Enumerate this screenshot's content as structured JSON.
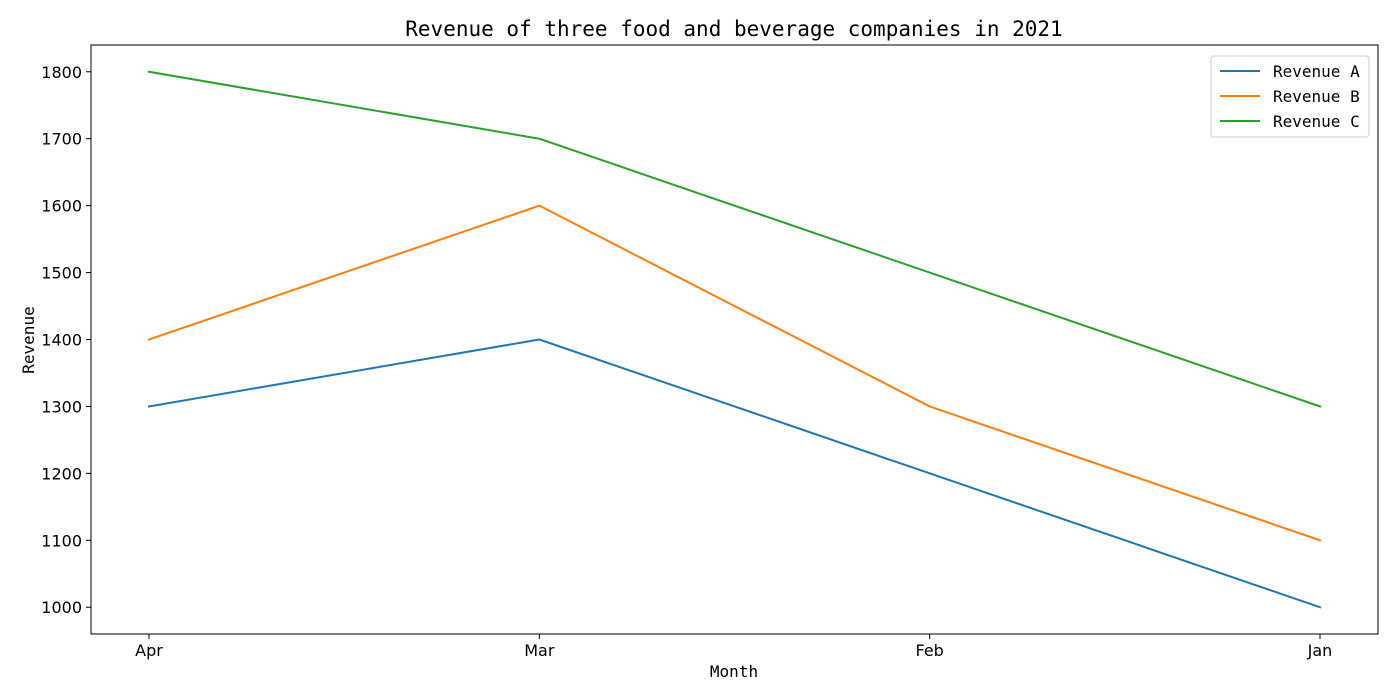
{
  "chart_data": {
    "type": "line",
    "title": "Revenue of three food and beverage companies in 2021",
    "xlabel": "Month",
    "ylabel": "Revenue",
    "categories": [
      "Apr",
      "Mar",
      "Feb",
      "Jan"
    ],
    "ylim": [
      960,
      1840
    ],
    "yticks": [
      1000,
      1100,
      1200,
      1300,
      1400,
      1500,
      1600,
      1700,
      1800
    ],
    "grid": false,
    "legend_position": "top-right",
    "series": [
      {
        "name": "Revenue A",
        "color": "#1f77b4",
        "values": [
          1300,
          1400,
          1200,
          1000
        ]
      },
      {
        "name": "Revenue B",
        "color": "#ff7f0e",
        "values": [
          1400,
          1600,
          1300,
          1100
        ]
      },
      {
        "name": "Revenue C",
        "color": "#2ca02c",
        "values": [
          1800,
          1700,
          1500,
          1300
        ]
      }
    ]
  }
}
